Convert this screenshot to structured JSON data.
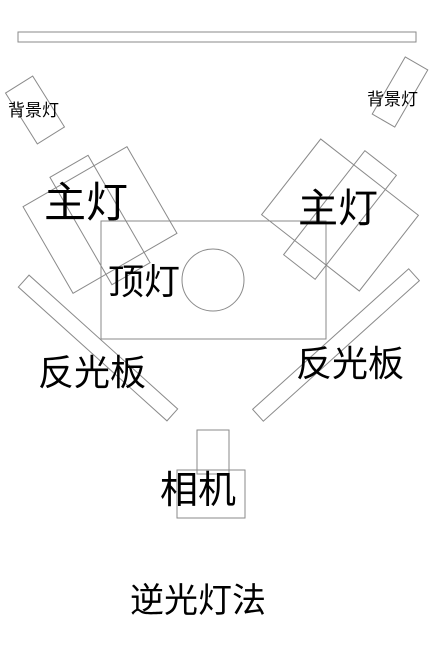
{
  "diagram": {
    "title": "逆光灯法",
    "labels": {
      "back_light_left": "背景灯",
      "back_light_right": "背景灯",
      "key_light_left": "主灯",
      "key_light_right": "主灯",
      "top_light": "顶灯",
      "reflector_left": "反光板",
      "reflector_right": "反光板",
      "camera": "相机"
    },
    "colors": {
      "outline": "#8a8a8a",
      "text": "#000000",
      "background": "#ffffff"
    }
  }
}
